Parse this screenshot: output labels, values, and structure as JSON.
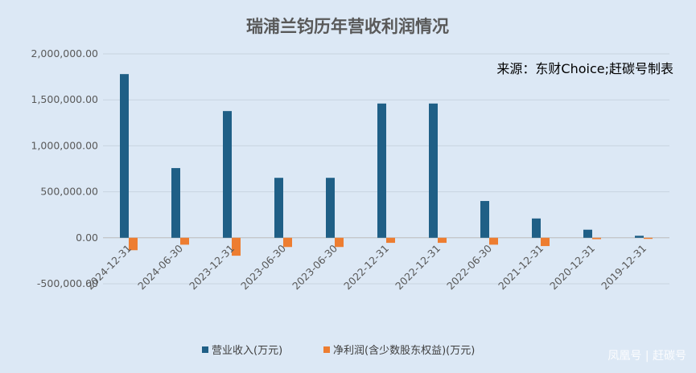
{
  "chart_data": {
    "type": "bar",
    "title": "瑞浦兰钧历年营收利润情况",
    "source_note": "来源：东财Choice;赶碳号制表",
    "categories": [
      "2024-12-31",
      "2024-06-30",
      "2023-12-31",
      "2023-06-30",
      "2023-06-30",
      "2022-12-31",
      "2022-12-31",
      "2022-06-30",
      "2021-12-31",
      "2020-12-31",
      "2019-12-31"
    ],
    "series": [
      {
        "name": "营业收入(万元)",
        "color": "#1f5f86",
        "values": [
          1780000,
          758000,
          1378000,
          652000,
          652000,
          1460000,
          1460000,
          400000,
          210000,
          88000,
          22000
        ]
      },
      {
        "name": "净利润(含少数股东权益)(万元)",
        "color": "#ed7d31",
        "values": [
          -135000,
          -75000,
          -195000,
          -100000,
          -100000,
          -55000,
          -55000,
          -75000,
          -90000,
          -15000,
          -12000
        ]
      }
    ],
    "y_ticks": [
      "2,000,000.00",
      "1,500,000.00",
      "1,000,000.00",
      "500,000.00",
      "0.00",
      "-500,000.00"
    ],
    "ylim": [
      -500000,
      2000000
    ],
    "grid": true,
    "legend_position": "bottom"
  },
  "watermark": "凤凰号 | 赶碳号",
  "colors": {
    "background": "#dce8f5",
    "grid": "#c7d3e0"
  }
}
